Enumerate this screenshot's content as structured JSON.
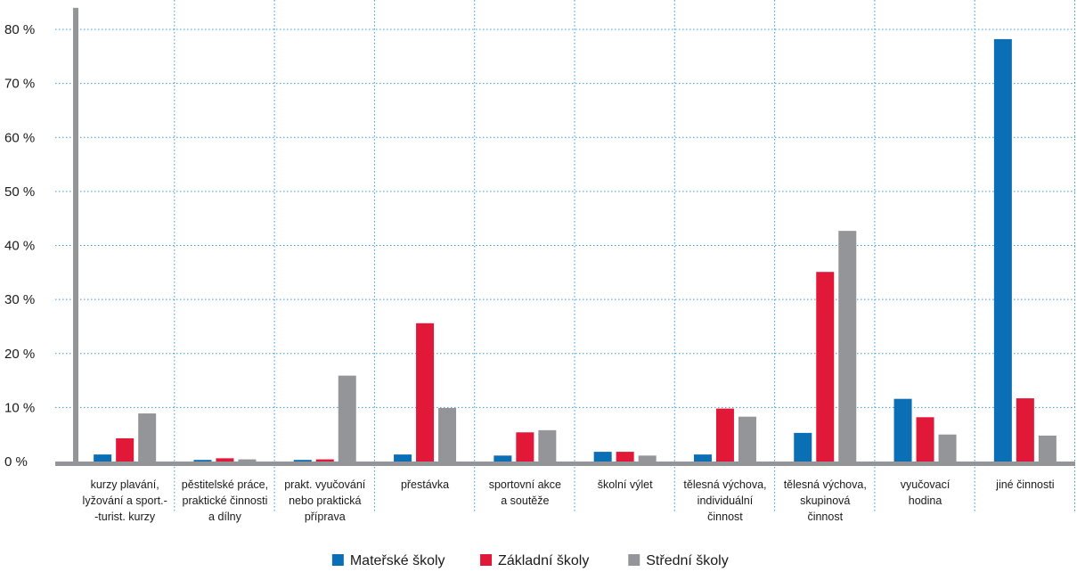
{
  "chart_data": {
    "type": "bar",
    "categories": [
      [
        "kurzy plavání,",
        "lyžování a sport.-",
        "-turist. kurzy"
      ],
      [
        "pěstitelské práce,",
        "praktické činnosti",
        "a dílny"
      ],
      [
        "prakt. vyučování",
        "nebo praktická",
        "příprava"
      ],
      [
        "přestávka"
      ],
      [
        "sportovní akce",
        "a soutěže"
      ],
      [
        "školní výlet"
      ],
      [
        "tělesná výchova,",
        "individuální",
        "činnost"
      ],
      [
        "tělesná výchova,",
        "skupinová",
        "činnost"
      ],
      [
        "vyučovací",
        "hodina"
      ],
      [
        "jiné činnosti"
      ]
    ],
    "series": [
      {
        "name": "Mateřské školy",
        "color": "#0a6fb5",
        "values": [
          1.3,
          0.3,
          0.3,
          1.3,
          1.1,
          1.8,
          1.3,
          5.3,
          11.6,
          78.2
        ]
      },
      {
        "name": "Základní školy",
        "color": "#e21838",
        "values": [
          4.3,
          0.6,
          0.4,
          25.6,
          5.4,
          1.8,
          9.8,
          35.1,
          8.2,
          11.7
        ]
      },
      {
        "name": "Střední školy",
        "color": "#939598",
        "values": [
          8.9,
          0.4,
          15.9,
          9.9,
          5.8,
          1.1,
          8.3,
          42.7,
          5.0,
          4.8
        ]
      }
    ],
    "yticks": [
      "0 %",
      "10 %",
      "20 %",
      "30 %",
      "40 %",
      "50 %",
      "60 %",
      "70 %",
      "80 %"
    ],
    "ytick_values": [
      0,
      10,
      20,
      30,
      40,
      50,
      60,
      70,
      80
    ],
    "ylim": [
      0,
      83
    ],
    "grid": true,
    "legend": "bottom-center",
    "axis_color": "#939598",
    "grid_color": "#3a9bd8"
  }
}
